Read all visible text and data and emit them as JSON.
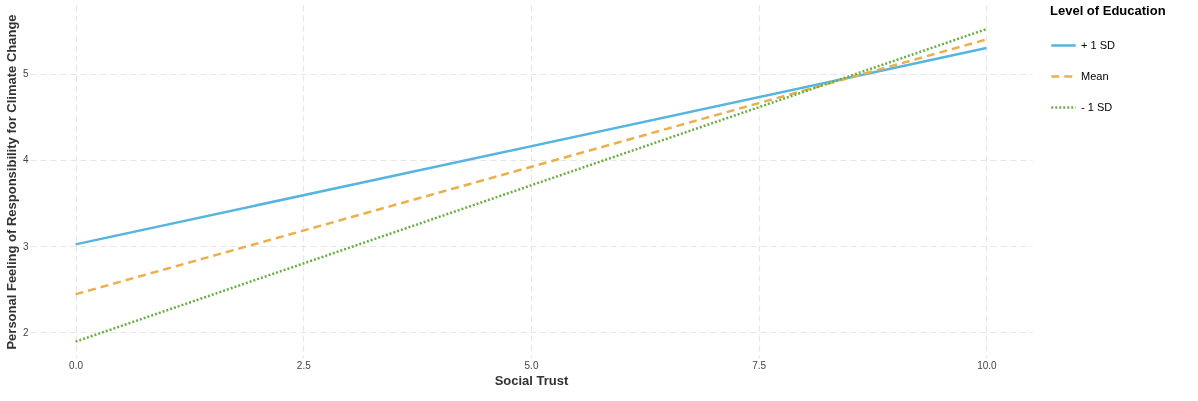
{
  "chart_data": {
    "type": "line",
    "xlabel": "Social Trust",
    "ylabel": "Personal Feeling of Responsibility for Climate Change",
    "legend_title": "Level of Education",
    "x": [
      0,
      10
    ],
    "series": [
      {
        "name": "+ 1 SD",
        "color": "#56b4e0",
        "line_style": "solid",
        "values": [
          3.02,
          5.3
        ]
      },
      {
        "name": "Mean",
        "color": "#e9b04b",
        "line_style": "dashed",
        "values": [
          2.44,
          5.4
        ]
      },
      {
        "name": "- 1 SD",
        "color": "#6aad45",
        "line_style": "dotted",
        "values": [
          1.89,
          5.52
        ]
      }
    ],
    "xlim": [
      -0.5,
      10.5
    ],
    "xticks": [
      {
        "value": 0,
        "label": "0.0"
      },
      {
        "value": 2.5,
        "label": "2.5"
      },
      {
        "value": 5,
        "label": "5.0"
      },
      {
        "value": 7.5,
        "label": "7.5"
      },
      {
        "value": 10,
        "label": "10.0"
      }
    ],
    "ylim": [
      1.7,
      5.8
    ],
    "yticks": [
      2,
      3,
      4,
      5
    ],
    "grid": true,
    "legend": "right",
    "marker": "none"
  }
}
